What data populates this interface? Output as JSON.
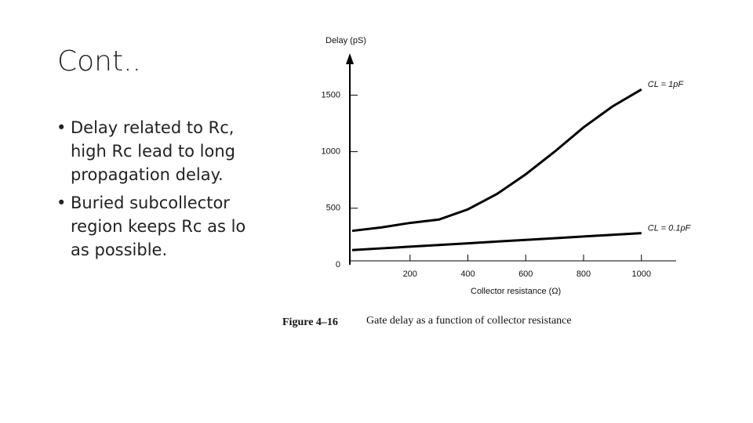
{
  "slide": {
    "title": "Cont..",
    "bullets": [
      "Delay related to Rc, high Rc lead to long propagation delay.",
      "Buried subcollector region keeps Rc as lo as possible."
    ]
  },
  "chart_data": {
    "type": "line",
    "y_label": "Delay (pS)",
    "x_label": "Collector resistance (Ω)",
    "caption_number": "Figure 4–16",
    "caption": "Gate delay as a function of collector resistance",
    "x": [
      0,
      100,
      200,
      300,
      400,
      500,
      600,
      700,
      800,
      900,
      1000
    ],
    "series": [
      {
        "name": "CL = 1pF",
        "color": "#000000",
        "values": [
          300,
          330,
          370,
          400,
          490,
          625,
          800,
          1000,
          1215,
          1400,
          1550
        ]
      },
      {
        "name": "CL = 0.1pF",
        "color": "#000000",
        "values": [
          130,
          145,
          160,
          175,
          190,
          205,
          220,
          235,
          250,
          265,
          280
        ]
      }
    ],
    "xlim": [
      0,
      1120
    ],
    "ylim": [
      0,
      1870
    ],
    "xticks": [
      200,
      400,
      600,
      800,
      1000
    ],
    "yticks": [
      0,
      500,
      1000,
      1500
    ]
  }
}
